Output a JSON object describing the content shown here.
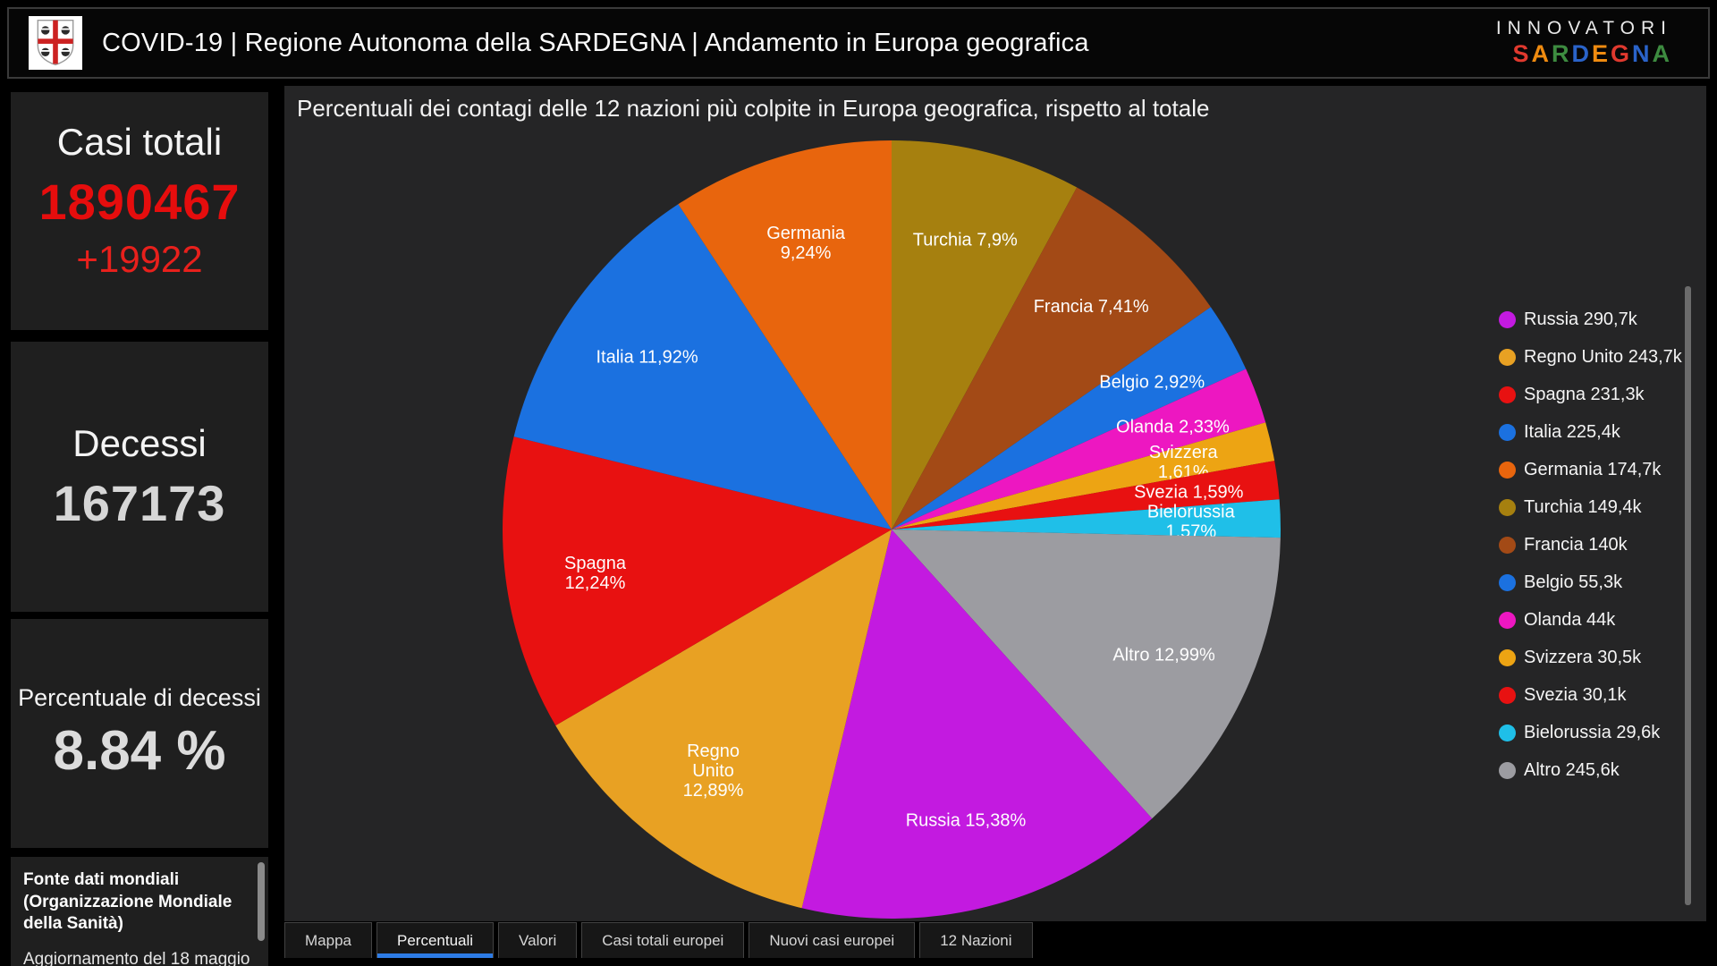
{
  "header": {
    "title": "COVID-19 | Regione Autonoma della SARDEGNA | Andamento in Europa geografica",
    "brand_line1": "INNOVATORI",
    "brand_line2_letters": [
      {
        "ch": "S",
        "color": "#e0392e"
      },
      {
        "ch": "A",
        "color": "#ef8b10"
      },
      {
        "ch": "R",
        "color": "#3d8b40"
      },
      {
        "ch": "D",
        "color": "#2a63c9"
      },
      {
        "ch": "E",
        "color": "#ef8b10"
      },
      {
        "ch": "G",
        "color": "#e0392e"
      },
      {
        "ch": "N",
        "color": "#2a63c9"
      },
      {
        "ch": "A",
        "color": "#3d8b40"
      }
    ]
  },
  "sidebar": {
    "total_cases": {
      "label": "Casi totali",
      "value": "1890467",
      "delta": "+19922"
    },
    "deaths": {
      "label": "Decessi",
      "value": "167173"
    },
    "death_rate": {
      "label": "Percentuale di decessi",
      "value": "8.84 %"
    },
    "source": {
      "bold_text": "Fonte dati mondiali (Organizzazione Mondiale della Sanità)",
      "update_note": "Aggiornamento del 18 maggio"
    }
  },
  "chart_data": {
    "type": "pie",
    "title": "Percentuali dei contagi delle 12 nazioni più colpite in Europa geografica, rispetto al totale",
    "legend_position": "right",
    "direction": "clockwise",
    "start_angle_deg": 0,
    "draw_order": [
      "Turchia",
      "Francia",
      "Belgio",
      "Olanda",
      "Svizzera",
      "Svezia",
      "Bielorussia",
      "Altro",
      "Russia",
      "Regno Unito",
      "Spagna",
      "Italia",
      "Germania"
    ],
    "slices": [
      {
        "name": "Russia",
        "pct": 15.38,
        "value_label": "290,7k",
        "color": "#c31ae0",
        "label_lines": [
          "Russia 15,38%"
        ]
      },
      {
        "name": "Regno Unito",
        "pct": 12.89,
        "value_label": "243,7k",
        "color": "#e8a123",
        "label_lines": [
          "Regno",
          "Unito",
          "12,89%"
        ]
      },
      {
        "name": "Spagna",
        "pct": 12.24,
        "value_label": "231,3k",
        "color": "#e81111",
        "label_lines": [
          "Spagna",
          "12,24%"
        ]
      },
      {
        "name": "Italia",
        "pct": 11.92,
        "value_label": "225,4k",
        "color": "#1b71e0",
        "label_lines": [
          "Italia 11,92%"
        ]
      },
      {
        "name": "Germania",
        "pct": 9.24,
        "value_label": "174,7k",
        "color": "#e8650d",
        "label_lines": [
          "Germania",
          "9,24%"
        ]
      },
      {
        "name": "Turchia",
        "pct": 7.9,
        "value_label": "149,4k",
        "color": "#a6800f",
        "label_lines": [
          "Turchia 7,9%"
        ]
      },
      {
        "name": "Francia",
        "pct": 7.41,
        "value_label": "140k",
        "color": "#a34a16",
        "label_lines": [
          "Francia 7,41%"
        ]
      },
      {
        "name": "Belgio",
        "pct": 2.92,
        "value_label": "55,3k",
        "color": "#1b71e0",
        "label_lines": [
          "Belgio 2,92%"
        ]
      },
      {
        "name": "Olanda",
        "pct": 2.33,
        "value_label": "44k",
        "color": "#ed17c1",
        "label_lines": [
          "Olanda 2,33%"
        ]
      },
      {
        "name": "Svizzera",
        "pct": 1.61,
        "value_label": "30,5k",
        "color": "#eda413",
        "label_lines": [
          "Svizzera",
          "1,61%"
        ]
      },
      {
        "name": "Svezia",
        "pct": 1.59,
        "value_label": "30,1k",
        "color": "#e81111",
        "label_lines": [
          "Svezia 1,59%"
        ]
      },
      {
        "name": "Bielorussia",
        "pct": 1.57,
        "value_label": "29,6k",
        "color": "#1fbfe8",
        "label_lines": [
          "Bielorussia",
          "1,57%"
        ]
      },
      {
        "name": "Altro",
        "pct": 12.99,
        "value_label": "245,6k",
        "color": "#9c9ca1",
        "label_lines": [
          "Altro 12,99%"
        ]
      }
    ]
  },
  "tabs": [
    {
      "label": "Mappa",
      "active": false
    },
    {
      "label": "Percentuali",
      "active": true
    },
    {
      "label": "Valori",
      "active": false
    },
    {
      "label": "Casi totali europei",
      "active": false
    },
    {
      "label": "Nuovi casi europei",
      "active": false
    },
    {
      "label": "12 Nazioni",
      "active": false
    }
  ],
  "colors": {
    "accent_red": "#e60d0d",
    "active_tab_underline": "#2d7be5",
    "panel_bg": "#252526",
    "card_bg": "#1f1f1f"
  }
}
